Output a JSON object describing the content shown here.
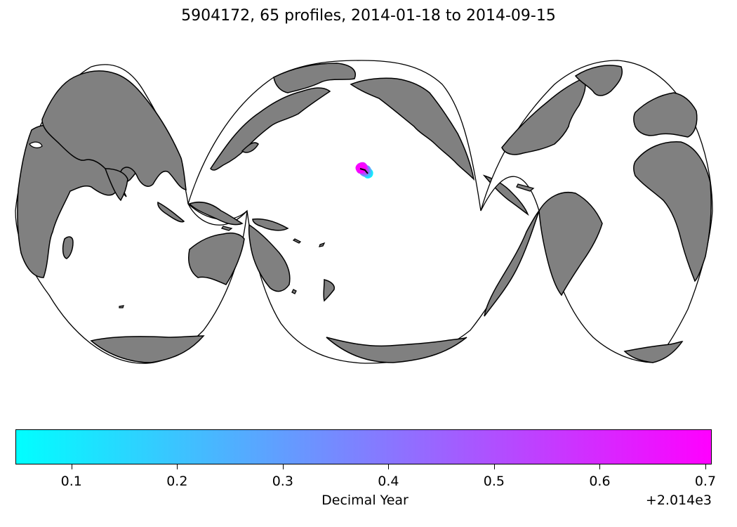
{
  "title": "5904172, 65 profiles, 2014-01-18 to 2014-09-15",
  "map": {
    "projection": "interrupted-goode-homolosine",
    "land_color": "#808080",
    "ocean_color": "#ffffff",
    "coastline_color": "#000000"
  },
  "float_track": {
    "id": "5904172",
    "profile_count": 65,
    "start_date": "2014-01-18",
    "end_date": "2014-09-15",
    "colormap": "cool",
    "colormap_start": "#00ffff",
    "colormap_end": "#ff00ff"
  },
  "colorbar": {
    "label": "Decimal Year",
    "offset_text": "+2.014e3",
    "range": [
      0.047,
      0.706
    ],
    "ticks": [
      {
        "value": 0.1,
        "label": "0.1"
      },
      {
        "value": 0.2,
        "label": "0.2"
      },
      {
        "value": 0.3,
        "label": "0.3"
      },
      {
        "value": 0.4,
        "label": "0.4"
      },
      {
        "value": 0.5,
        "label": "0.5"
      },
      {
        "value": 0.6,
        "label": "0.6"
      },
      {
        "value": 0.7,
        "label": "0.7"
      }
    ]
  }
}
